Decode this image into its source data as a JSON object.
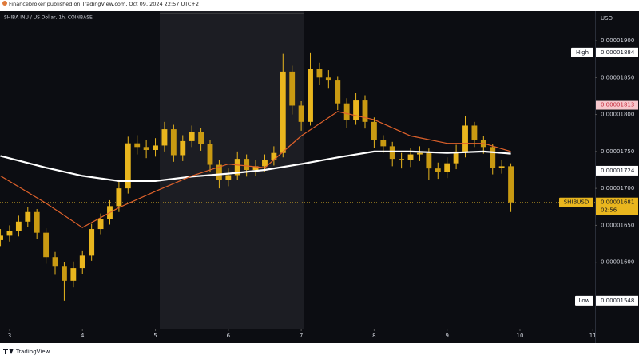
{
  "chart_data": {
    "type": "candlestick",
    "source": "Financebroker published on TradingView.com, Oct 09, 2024 22:57 UTC+2",
    "title": "SHIBA INU / US Dollar, 1h, COINBASE",
    "currency": "USD",
    "brand": "TradingView",
    "color": "#e9b61e",
    "grid": false,
    "x": [
      2.875,
      3,
      3.125,
      3.25,
      3.375,
      3.5,
      3.625,
      3.75,
      3.875,
      4,
      4.125,
      4.25,
      4.375,
      4.5,
      4.625,
      4.75,
      4.875,
      5,
      5.125,
      5.25,
      5.375,
      5.5,
      5.625,
      5.75,
      5.875,
      6,
      6.125,
      6.25,
      6.375,
      6.5,
      6.625,
      6.75,
      6.875,
      7,
      7.125,
      7.25,
      7.375,
      7.5,
      7.625,
      7.75,
      7.875,
      8,
      8.125,
      8.25,
      8.375,
      8.5,
      8.625,
      8.75,
      8.875,
      9,
      9.125,
      9.25,
      9.375,
      9.5,
      9.625,
      9.75,
      9.875
    ],
    "open": [
      1.63e-05,
      1.636e-05,
      1.642e-05,
      1.655e-05,
      1.668e-05,
      1.64e-05,
      1.607e-05,
      1.594e-05,
      1.575e-05,
      1.592e-05,
      1.609e-05,
      1.645e-05,
      1.658e-05,
      1.676e-05,
      1.7e-05,
      1.761e-05,
      1.756e-05,
      1.752e-05,
      1.758e-05,
      1.78e-05,
      1.745e-05,
      1.764e-05,
      1.776e-05,
      1.76e-05,
      1.732e-05,
      1.712e-05,
      1.718e-05,
      1.74e-05,
      1.725e-05,
      1.73e-05,
      1.738e-05,
      1.748e-05,
      1.858e-05,
      1.812e-05,
      1.79e-05,
      1.862e-05,
      1.85e-05,
      1.847e-05,
      1.815e-05,
      1.793e-05,
      1.82e-05,
      1.79e-05,
      1.765e-05,
      1.757e-05,
      1.74e-05,
      1.738e-05,
      1.746e-05,
      1.748e-05,
      1.727e-05,
      1.722e-05,
      1.734e-05,
      1.75e-05,
      1.785e-05,
      1.765e-05,
      1.756e-05,
      1.728e-05,
      1.73e-05
    ],
    "high": [
      1.645e-05,
      1.65e-05,
      1.663e-05,
      1.675e-05,
      1.672e-05,
      1.646e-05,
      1.614e-05,
      1.6e-05,
      1.601e-05,
      1.616e-05,
      1.652e-05,
      1.666e-05,
      1.684e-05,
      1.71e-05,
      1.77e-05,
      1.772e-05,
      1.765e-05,
      1.768e-05,
      1.79e-05,
      1.786e-05,
      1.772e-05,
      1.785e-05,
      1.782e-05,
      1.765e-05,
      1.738e-05,
      1.727e-05,
      1.75e-05,
      1.746e-05,
      1.738e-05,
      1.746e-05,
      1.757e-05,
      1.882e-05,
      1.866e-05,
      1.818e-05,
      1.884e-05,
      1.87e-05,
      1.86e-05,
      1.852e-05,
      1.822e-05,
      1.829e-05,
      1.826e-05,
      1.796e-05,
      1.772e-05,
      1.763e-05,
      1.748e-05,
      1.755e-05,
      1.757e-05,
      1.754e-05,
      1.735e-05,
      1.742e-05,
      1.759e-05,
      1.798e-05,
      1.79e-05,
      1.771e-05,
      1.76e-05,
      1.738e-05,
      1.734e-05
    ],
    "low": [
      1.622e-05,
      1.628e-05,
      1.635e-05,
      1.648e-05,
      1.631e-05,
      1.598e-05,
      1.583e-05,
      1.548e-05,
      1.566e-05,
      1.584e-05,
      1.602e-05,
      1.638e-05,
      1.651e-05,
      1.668e-05,
      1.693e-05,
      1.746e-05,
      1.741e-05,
      1.743e-05,
      1.75e-05,
      1.736e-05,
      1.737e-05,
      1.756e-05,
      1.751e-05,
      1.722e-05,
      1.7e-05,
      1.703e-05,
      1.711e-05,
      1.716e-05,
      1.717e-05,
      1.723e-05,
      1.731e-05,
      1.742e-05,
      1.8e-05,
      1.778e-05,
      1.785e-05,
      1.84e-05,
      1.836e-05,
      1.806e-05,
      1.782e-05,
      1.786e-05,
      1.781e-05,
      1.755e-05,
      1.748e-05,
      1.73e-05,
      1.727e-05,
      1.729e-05,
      1.737e-05,
      1.711e-05,
      1.713e-05,
      1.714e-05,
      1.726e-05,
      1.742e-05,
      1.756e-05,
      1.747e-05,
      1.719e-05,
      1.72e-05,
      1.668e-05
    ],
    "close": [
      1.636e-05,
      1.642e-05,
      1.655e-05,
      1.668e-05,
      1.64e-05,
      1.607e-05,
      1.594e-05,
      1.575e-05,
      1.592e-05,
      1.609e-05,
      1.645e-05,
      1.658e-05,
      1.676e-05,
      1.7e-05,
      1.761e-05,
      1.756e-05,
      1.752e-05,
      1.758e-05,
      1.78e-05,
      1.745e-05,
      1.764e-05,
      1.776e-05,
      1.76e-05,
      1.732e-05,
      1.712e-05,
      1.718e-05,
      1.74e-05,
      1.725e-05,
      1.73e-05,
      1.738e-05,
      1.748e-05,
      1.858e-05,
      1.812e-05,
      1.79e-05,
      1.862e-05,
      1.85e-05,
      1.847e-05,
      1.815e-05,
      1.793e-05,
      1.82e-05,
      1.79e-05,
      1.765e-05,
      1.757e-05,
      1.74e-05,
      1.738e-05,
      1.746e-05,
      1.748e-05,
      1.727e-05,
      1.722e-05,
      1.734e-05,
      1.75e-05,
      1.785e-05,
      1.765e-05,
      1.756e-05,
      1.728e-05,
      1.73e-05,
      1.681e-05
    ],
    "overlays": [
      {
        "color": "#ffffff",
        "x": [
          2.875,
          3.5,
          4,
          4.5,
          5,
          5.5,
          6,
          6.5,
          7,
          7.5,
          8,
          8.5,
          9,
          9.5,
          9.875
        ],
        "values": [
          1.744e-05,
          1.728e-05,
          1.717e-05,
          1.71e-05,
          1.71e-05,
          1.716e-05,
          1.72e-05,
          1.725e-05,
          1.733e-05,
          1.742e-05,
          1.75e-05,
          1.75e-05,
          1.748e-05,
          1.75e-05,
          1.747e-05
        ]
      },
      {
        "color": "#e0622b",
        "x": [
          2.875,
          3.5,
          4,
          4.5,
          5,
          5.5,
          6,
          6.5,
          7,
          7.5,
          8,
          8.5,
          9,
          9.5,
          9.875
        ],
        "values": [
          1.717e-05,
          1.68e-05,
          1.647e-05,
          1.674e-05,
          1.696e-05,
          1.717e-05,
          1.733e-05,
          1.728e-05,
          1.771e-05,
          1.804e-05,
          1.793e-05,
          1.771e-05,
          1.761e-05,
          1.761e-05,
          1.75e-05
        ]
      }
    ],
    "price_labels": [
      {
        "label": "High",
        "value": 1.884e-05
      },
      {
        "value": 1.813e-05
      },
      {
        "value": 1.724e-05
      },
      {
        "label": "SHIBUSD",
        "value": 1.681e-05,
        "countdown": "02:56"
      },
      {
        "label": "Low",
        "value": 1.548e-05
      }
    ],
    "xlim": [
      2.869,
      11.03
    ],
    "xticks": [
      3,
      4,
      5,
      6,
      7,
      8,
      9,
      10,
      11
    ],
    "ylim": [
      1.51e-05,
      1.94e-05
    ],
    "yticks": [
      {
        "value": 1.6e-05,
        "label": "0.00001600"
      },
      {
        "value": 1.65e-05,
        "label": "0.00001650"
      },
      {
        "value": 1.7e-05,
        "label": "0.00001700"
      },
      {
        "value": 1.75e-05,
        "label": "0.00001750"
      },
      {
        "value": 1.8e-05,
        "label": "0.00001800"
      },
      {
        "value": 1.85e-05,
        "label": "0.00001850"
      },
      {
        "value": 1.9e-05,
        "label": "0.00001900"
      }
    ]
  }
}
